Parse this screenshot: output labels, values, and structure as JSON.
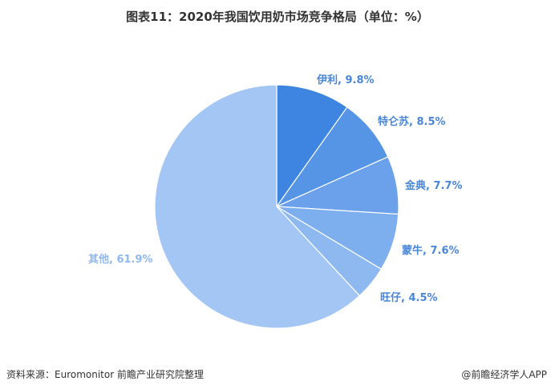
{
  "title": "图表11：2020年我国饮用奶市场竞争格局（单位：%）",
  "source": "资料来源：Euromonitor 前瞻产业研究院整理",
  "credit": "@前瞻经济学人APP",
  "chart_data": {
    "type": "pie",
    "title": "图表11：2020年我国饮用奶市场竞争格局（单位：%）",
    "unit": "%",
    "slices": [
      {
        "label": "伊利",
        "value": 9.8,
        "display": "伊利, 9.8%",
        "color": "#3d85e0"
      },
      {
        "label": "特仑苏",
        "value": 8.5,
        "display": "特仑苏, 8.5%",
        "color": "#5694e6"
      },
      {
        "label": "金典",
        "value": 7.7,
        "display": "金典, 7.7%",
        "color": "#6ba1ea"
      },
      {
        "label": "蒙牛",
        "value": 7.6,
        "display": "蒙牛, 7.6%",
        "color": "#7daeed"
      },
      {
        "label": "旺仔",
        "value": 4.5,
        "display": "旺仔, 4.5%",
        "color": "#8db9f0"
      },
      {
        "label": "其他",
        "value": 61.9,
        "display": "其他, 61.9%",
        "color": "#a3c6f4"
      }
    ],
    "label_color": "#4a86d8",
    "other_label_color": "#8fb8ee",
    "start": "12 o'clock",
    "direction": "clockwise"
  }
}
